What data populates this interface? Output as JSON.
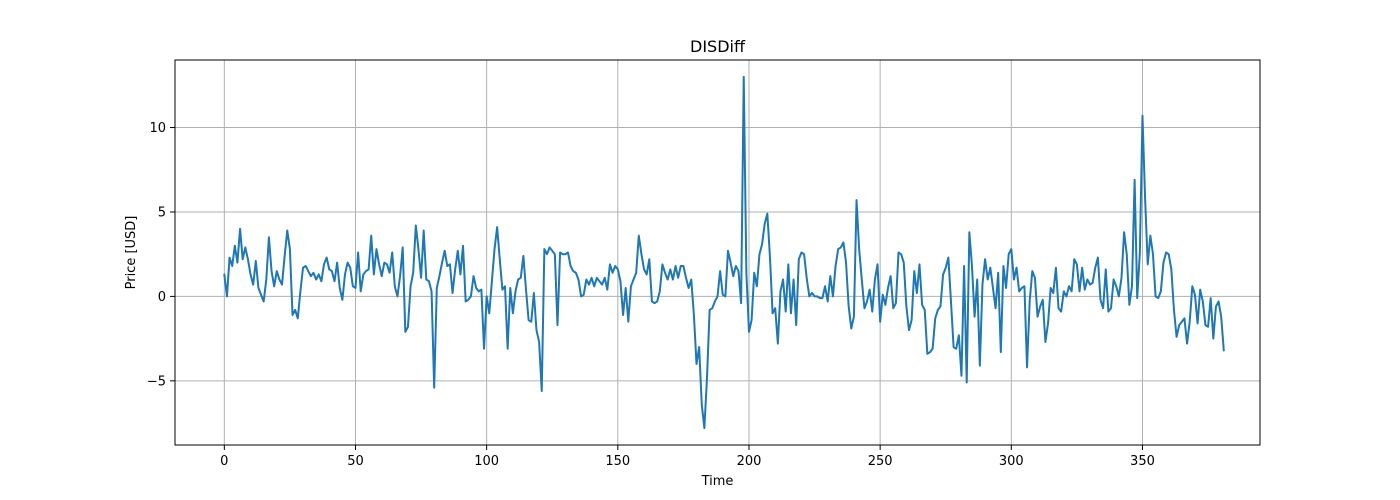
{
  "chart_data": {
    "type": "line",
    "title": "DISDiff",
    "xlabel": "Time",
    "ylabel": "Price [USD]",
    "xlim": [
      -18.8,
      394.8
    ],
    "ylim": [
      -8.8,
      14.0
    ],
    "xticks": [
      0,
      50,
      100,
      150,
      200,
      250,
      300,
      350
    ],
    "yticks": [
      -5,
      0,
      5,
      10
    ],
    "ytick_labels": [
      "−5",
      "0",
      "5",
      "10"
    ],
    "grid": true,
    "series": [
      {
        "name": "DISDiff",
        "color": "#1f77b4",
        "x_start": 0,
        "values": [
          1.3,
          0.0,
          2.3,
          1.8,
          3.0,
          2.0,
          4.0,
          2.2,
          2.9,
          2.2,
          1.3,
          0.7,
          2.1,
          0.5,
          0.1,
          -0.3,
          1.0,
          3.5,
          1.5,
          0.6,
          1.5,
          1.0,
          0.7,
          2.4,
          3.9,
          2.8,
          -1.1,
          -0.8,
          -1.3,
          0.3,
          1.7,
          1.8,
          1.5,
          1.2,
          1.4,
          1.0,
          1.3,
          0.9,
          1.9,
          2.3,
          1.6,
          1.5,
          0.9,
          2.0,
          0.5,
          -0.2,
          1.3,
          2.0,
          1.7,
          0.6,
          0.5,
          2.6,
          0.3,
          1.3,
          1.5,
          1.6,
          3.6,
          1.3,
          2.8,
          1.9,
          1.2,
          2.0,
          1.9,
          1.4,
          2.6,
          0.6,
          0.0,
          1.2,
          2.9,
          -2.1,
          -1.8,
          0.6,
          1.4,
          4.2,
          2.8,
          1.1,
          3.9,
          1.0,
          0.9,
          0.3,
          -5.4,
          0.5,
          1.2,
          2.0,
          2.7,
          1.8,
          1.9,
          0.2,
          1.6,
          2.7,
          1.3,
          3.0,
          -0.3,
          -0.2,
          0.0,
          1.2,
          0.5,
          0.3,
          0.4,
          -3.1,
          0.0,
          -1.0,
          0.9,
          2.8,
          4.1,
          2.2,
          0.4,
          0.6,
          -3.1,
          0.5,
          -1.0,
          0.3,
          1.0,
          1.1,
          2.4,
          0.4,
          -1.4,
          -1.5,
          0.2,
          -2.0,
          -2.7,
          -5.6,
          2.8,
          2.5,
          2.9,
          2.7,
          2.5,
          -1.7,
          2.6,
          2.5,
          2.5,
          2.6,
          1.8,
          1.5,
          1.4,
          1.0,
          0.0,
          0.1,
          1.0,
          0.7,
          1.1,
          0.6,
          1.1,
          0.9,
          0.7,
          1.1,
          0.4,
          1.9,
          1.4,
          1.8,
          1.6,
          0.9,
          -1.1,
          0.5,
          -1.5,
          0.6,
          1.0,
          1.4,
          3.6,
          2.5,
          1.6,
          1.3,
          2.2,
          -0.3,
          -0.4,
          -0.3,
          0.3,
          1.9,
          1.4,
          1.0,
          1.6,
          1.0,
          1.8,
          1.1,
          1.8,
          1.8,
          1.1,
          0.5,
          1.0,
          -1.1,
          -4.0,
          -3.0,
          -6.4,
          -7.8,
          -4.8,
          -0.8,
          -0.7,
          -0.3,
          0.0,
          1.5,
          0.1,
          0.0,
          2.7,
          2.0,
          1.2,
          1.8,
          1.5,
          -0.4,
          13.0,
          1.4,
          -2.1,
          -1.4,
          1.4,
          0.6,
          2.5,
          3.1,
          4.3,
          4.9,
          2.3,
          -1.0,
          -0.7,
          -2.8,
          0.3,
          1.0,
          -0.9,
          1.9,
          -1.0,
          1.0,
          -1.7,
          2.2,
          2.6,
          2.5,
          1.1,
          0.0,
          0.2,
          0.0,
          0.0,
          -0.1,
          -0.1,
          0.6,
          -0.3,
          1.2,
          0.0,
          1.8,
          2.8,
          2.9,
          3.2,
          2.0,
          -0.6,
          -1.9,
          -1.2,
          5.7,
          2.8,
          1.0,
          -0.7,
          -0.3,
          0.4,
          -0.9,
          1.0,
          1.9,
          -1.5,
          0.1,
          -0.5,
          0.5,
          1.2,
          -0.7,
          -0.4,
          2.6,
          2.5,
          2.0,
          -0.6,
          -2.0,
          -1.4,
          1.5,
          0.2,
          1.9,
          -0.5,
          -0.8,
          -3.4,
          -3.3,
          -3.1,
          -1.3,
          -0.8,
          -0.6,
          1.3,
          1.7,
          2.3,
          -0.3,
          -3.0,
          -3.1,
          -2.3,
          -4.7,
          1.8,
          -5.1,
          3.8,
          1.8,
          -1.2,
          1.0,
          -4.1,
          0.7,
          2.2,
          1.0,
          1.7,
          0.5,
          -0.7,
          1.4,
          -3.3,
          1.8,
          0.5,
          2.5,
          2.8,
          1.0,
          1.7,
          0.3,
          0.5,
          0.6,
          -4.2,
          -0.3,
          1.5,
          1.1,
          -1.2,
          -0.6,
          -0.2,
          -2.7,
          -1.6,
          0.5,
          0.2,
          1.7,
          -0.7,
          -0.9,
          0.3,
          0.0,
          0.6,
          0.3,
          2.2,
          1.9,
          0.3,
          1.7,
          0.4,
          1.0,
          0.7,
          0.8,
          1.7,
          2.3,
          -0.2,
          -0.7,
          1.6,
          -0.9,
          -0.7,
          1.0,
          0.6,
          0.0,
          1.1,
          3.8,
          2.5,
          -0.5,
          0.6,
          6.9,
          -0.1,
          2.6,
          10.7,
          5.8,
          1.9,
          3.6,
          2.5,
          0.0,
          -0.1,
          0.3,
          2.0,
          2.6,
          2.5,
          1.6,
          -0.8,
          -2.4,
          -1.7,
          -1.5,
          -1.3,
          -2.8,
          -1.5,
          0.6,
          0.1,
          -1.6,
          0.4,
          -0.3,
          -1.7,
          -1.8,
          -0.1,
          -2.5,
          -0.6,
          -0.3,
          -1.2,
          -3.2
        ]
      }
    ]
  }
}
